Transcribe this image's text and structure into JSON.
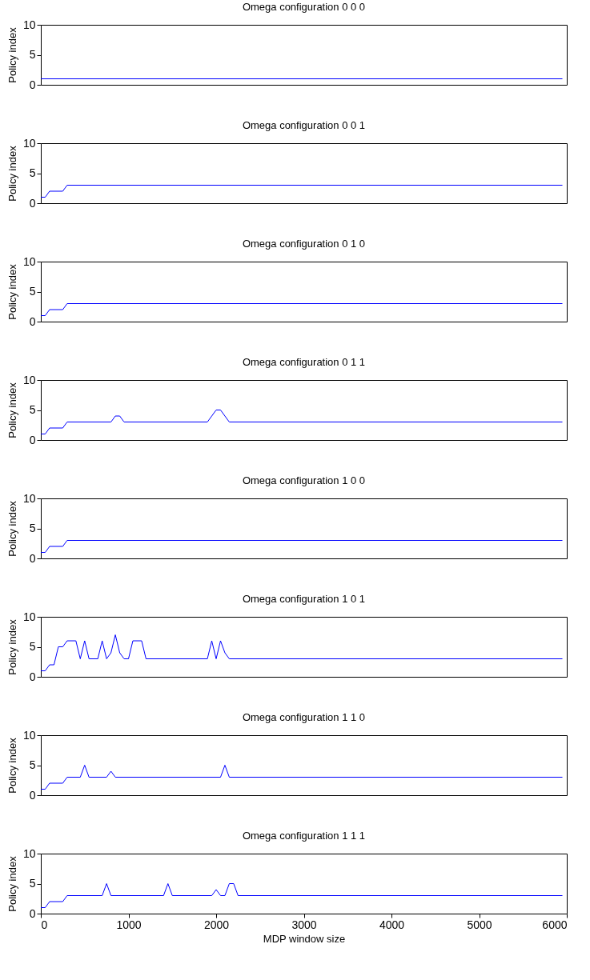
{
  "chart_data": [
    {
      "type": "line",
      "title": "Omega configuration 0  0  0",
      "ylabel": "Policy index",
      "xlim": [
        0,
        6000
      ],
      "xticks": [
        0,
        1000,
        2000,
        3000,
        4000,
        5000,
        6000
      ],
      "ylim": [
        0,
        10
      ],
      "yticks": [
        0,
        5,
        10
      ],
      "tick_labels": "y",
      "series": [
        {
          "color": "#0000ff",
          "x": [
            0,
            5950
          ],
          "values": [
            1,
            1
          ]
        }
      ]
    },
    {
      "type": "line",
      "title": "Omega configuration 0  0  1",
      "ylabel": "Policy index",
      "xlim": [
        0,
        6000
      ],
      "xticks": [
        0,
        1000,
        2000,
        3000,
        4000,
        5000,
        6000
      ],
      "ylim": [
        0,
        10
      ],
      "yticks": [
        0,
        5,
        10
      ],
      "tick_labels": "y",
      "series": [
        {
          "color": "#0000ff",
          "x": [
            0,
            50,
            100,
            250,
            300,
            5950
          ],
          "values": [
            1,
            1,
            2,
            2,
            3,
            3
          ]
        }
      ]
    },
    {
      "type": "line",
      "title": "Omega configuration 0  1  0",
      "ylabel": "Policy index",
      "xlim": [
        0,
        6000
      ],
      "xticks": [
        0,
        1000,
        2000,
        3000,
        4000,
        5000,
        6000
      ],
      "ylim": [
        0,
        10
      ],
      "yticks": [
        0,
        5,
        10
      ],
      "tick_labels": "y",
      "series": [
        {
          "color": "#0000ff",
          "x": [
            0,
            50,
            100,
            250,
            300,
            5950
          ],
          "values": [
            1,
            1,
            2,
            2,
            3,
            3
          ]
        }
      ]
    },
    {
      "type": "line",
      "title": "Omega configuration 0  1  1",
      "ylabel": "Policy index",
      "xlim": [
        0,
        6000
      ],
      "xticks": [
        0,
        1000,
        2000,
        3000,
        4000,
        5000,
        6000
      ],
      "ylim": [
        0,
        10
      ],
      "yticks": [
        0,
        5,
        10
      ],
      "tick_labels": "y",
      "series": [
        {
          "color": "#0000ff",
          "x": [
            0,
            50,
            100,
            250,
            300,
            800,
            850,
            900,
            950,
            1900,
            2000,
            2050,
            2150,
            5950
          ],
          "values": [
            1,
            1,
            2,
            2,
            3,
            3,
            4,
            4,
            3,
            3,
            5,
            5,
            3,
            3
          ]
        }
      ]
    },
    {
      "type": "line",
      "title": "Omega configuration 1  0  0",
      "ylabel": "Policy index",
      "xlim": [
        0,
        6000
      ],
      "xticks": [
        0,
        1000,
        2000,
        3000,
        4000,
        5000,
        6000
      ],
      "ylim": [
        0,
        10
      ],
      "yticks": [
        0,
        5,
        10
      ],
      "tick_labels": "y",
      "series": [
        {
          "color": "#0000ff",
          "x": [
            0,
            50,
            100,
            250,
            300,
            5950
          ],
          "values": [
            1,
            1,
            2,
            2,
            3,
            3
          ]
        }
      ]
    },
    {
      "type": "line",
      "title": "Omega configuration 1  0  1",
      "ylabel": "Policy index",
      "xlim": [
        0,
        6000
      ],
      "xticks": [
        0,
        1000,
        2000,
        3000,
        4000,
        5000,
        6000
      ],
      "ylim": [
        0,
        10
      ],
      "yticks": [
        0,
        5,
        10
      ],
      "tick_labels": "y",
      "series": [
        {
          "color": "#0000ff",
          "x": [
            0,
            50,
            100,
            150,
            200,
            250,
            300,
            400,
            450,
            500,
            550,
            650,
            700,
            750,
            800,
            850,
            900,
            950,
            1000,
            1050,
            1150,
            1200,
            1900,
            1950,
            2000,
            2050,
            2100,
            2150,
            5950
          ],
          "values": [
            1,
            1,
            2,
            2,
            5,
            5,
            6,
            6,
            3,
            6,
            3,
            3,
            6,
            3,
            4,
            7,
            4,
            3,
            3,
            6,
            6,
            3,
            3,
            6,
            3,
            6,
            4,
            3,
            3
          ]
        }
      ]
    },
    {
      "type": "line",
      "title": "Omega configuration 1  1  0",
      "ylabel": "Policy index",
      "xlim": [
        0,
        6000
      ],
      "xticks": [
        0,
        1000,
        2000,
        3000,
        4000,
        5000,
        6000
      ],
      "ylim": [
        0,
        10
      ],
      "yticks": [
        0,
        5,
        10
      ],
      "tick_labels": "y",
      "series": [
        {
          "color": "#0000ff",
          "x": [
            0,
            50,
            100,
            250,
            300,
            450,
            500,
            550,
            750,
            800,
            850,
            2050,
            2100,
            2150,
            5950
          ],
          "values": [
            1,
            1,
            2,
            2,
            3,
            3,
            5,
            3,
            3,
            4,
            3,
            3,
            5,
            3,
            3
          ]
        }
      ]
    },
    {
      "type": "line",
      "title": "Omega configuration 1  1  1",
      "xlabel": "MDP window size",
      "ylabel": "Policy index",
      "xlim": [
        0,
        6000
      ],
      "xticks": [
        0,
        1000,
        2000,
        3000,
        4000,
        5000,
        6000
      ],
      "ylim": [
        0,
        10
      ],
      "yticks": [
        0,
        5,
        10
      ],
      "series": [
        {
          "color": "#0000ff",
          "x": [
            0,
            50,
            100,
            250,
            300,
            700,
            750,
            800,
            1400,
            1450,
            1500,
            1950,
            2000,
            2050,
            2100,
            2150,
            2200,
            2250,
            5950
          ],
          "values": [
            1,
            1,
            2,
            2,
            3,
            3,
            5,
            3,
            3,
            5,
            3,
            3,
            4,
            3,
            3,
            5,
            5,
            3,
            3
          ]
        }
      ]
    }
  ]
}
